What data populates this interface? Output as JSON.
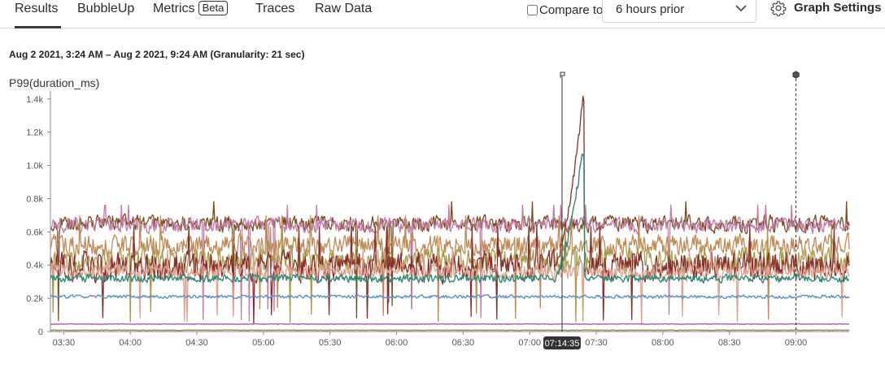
{
  "tabs": [
    {
      "label": "Results",
      "active": true
    },
    {
      "label": "BubbleUp"
    },
    {
      "label": "Metrics",
      "badge": "Beta"
    },
    {
      "label": "Traces"
    },
    {
      "label": "Raw Data"
    }
  ],
  "compare": {
    "label": "Compare to",
    "checked": false,
    "selected": "6 hours prior"
  },
  "graph_settings_label": "Graph Settings",
  "time_range": "Aug 2 2021, 3:24 AM – Aug 2 2021, 9:24 AM (Granularity: 21 sec)",
  "icons": {
    "settings": "gear-icon",
    "dropdown": "chevron-down-icon",
    "trace_marker": "flag-icon",
    "deploy_marker": "hexagon-marker-icon"
  },
  "chart_data": {
    "type": "line",
    "title": "P99(duration_ms)",
    "x_start": "03:24",
    "x_end": "09:24",
    "y_ticks": [
      "0",
      "0.2k",
      "0.4k",
      "0.6k",
      "0.8k",
      "1.0k",
      "1.2k",
      "1.4k"
    ],
    "x_ticks": [
      "03:30",
      "04:00",
      "04:30",
      "05:00",
      "05:30",
      "06:00",
      "06:30",
      "07:00",
      "07:30",
      "08:00",
      "08:30",
      "09:00"
    ],
    "ylim": [
      0,
      1400
    ],
    "cursor": {
      "time": "07:14:35"
    },
    "markers": [
      {
        "time": "07:14:35",
        "icon": "flag-icon"
      },
      {
        "time": "09:00",
        "icon": "hexagon-marker-icon"
      }
    ],
    "grid": false,
    "series": [
      {
        "color": "#7b4a1e",
        "approx_mean": 650,
        "noise": 60
      },
      {
        "color": "#c47aa6",
        "approx_mean": 640,
        "noise": 55
      },
      {
        "color": "#c08a55",
        "approx_mean": 520,
        "noise": 80
      },
      {
        "color": "#a99a4e",
        "approx_mean": 430,
        "noise": 90
      },
      {
        "color": "#8a2d2a",
        "approx_mean": 390,
        "noise": 110,
        "spike_peak": 1420
      },
      {
        "color": "#e0a08c",
        "approx_mean": 360,
        "noise": 60
      },
      {
        "color": "#2f8a75",
        "approx_mean": 320,
        "noise": 30,
        "spike_peak": 1100
      },
      {
        "color": "#5b8fd1",
        "approx_mean": 210,
        "noise": 12
      },
      {
        "color": "#a45fb0",
        "approx_mean": 45,
        "noise": 2
      },
      {
        "color": "#9a8a44",
        "approx_mean": 8,
        "noise": 2
      }
    ]
  }
}
